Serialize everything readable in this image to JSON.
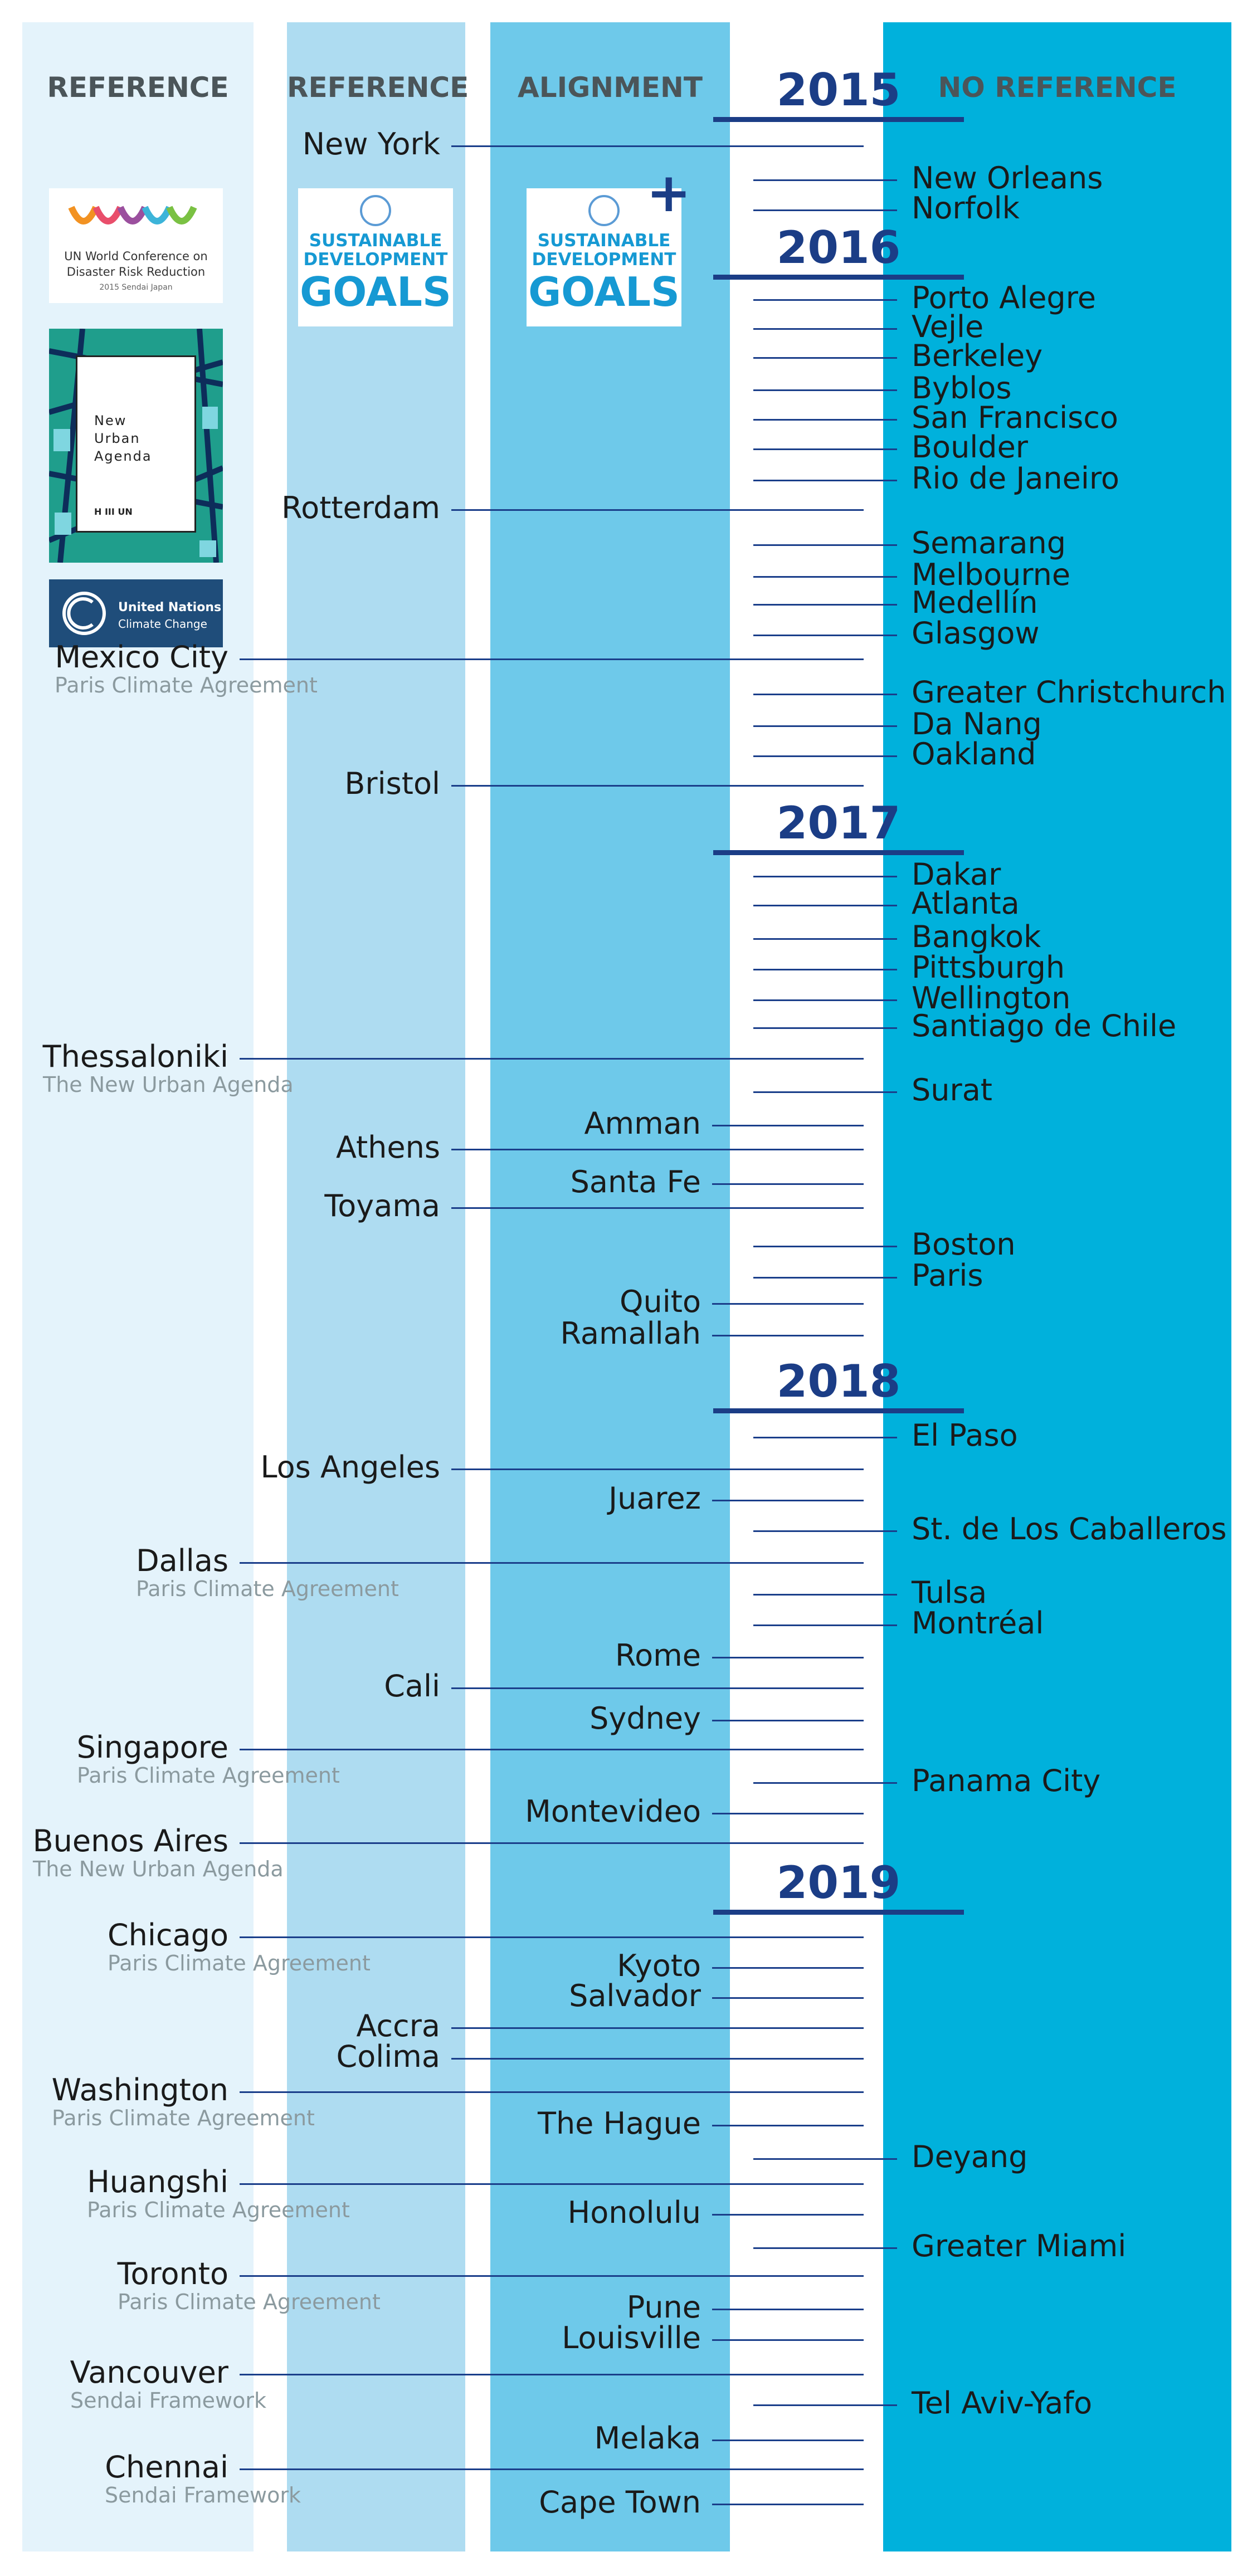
{
  "columns": [
    {
      "label": "REFERENCE"
    },
    {
      "label": "REFERENCE"
    },
    {
      "label": "ALIGNMENT"
    },
    {
      "label": "NO REFERENCE"
    }
  ],
  "years": [
    "2015",
    "2016",
    "2017",
    "2018",
    "2019"
  ],
  "logos": {
    "sendai": {
      "line1": "UN World Conference on",
      "line2": "Disaster Risk Reduction",
      "line3": "2015 Sendai Japan"
    },
    "nua": {
      "line1": "New",
      "line2": "Urban",
      "line3": "Agenda",
      "footer": "H III UN"
    },
    "unfccc": {
      "line1": "United Nations",
      "line2": "Climate Change"
    },
    "sdg": {
      "line1": "SUSTAINABLE",
      "line2": "DEVELOPMENT",
      "goals": "GOALS",
      "plus": "+"
    }
  },
  "entries": [
    {
      "name": "New York",
      "col": "ref2"
    },
    {
      "name": "New Orleans",
      "col": "noref"
    },
    {
      "name": "Norfolk",
      "col": "noref"
    },
    {
      "name": "Porto Alegre",
      "col": "noref"
    },
    {
      "name": "Vejle",
      "col": "noref"
    },
    {
      "name": "Berkeley",
      "col": "noref"
    },
    {
      "name": "Byblos",
      "col": "noref"
    },
    {
      "name": "San Francisco",
      "col": "noref"
    },
    {
      "name": "Boulder",
      "col": "noref"
    },
    {
      "name": "Rio de Janeiro",
      "col": "noref"
    },
    {
      "name": "Rotterdam",
      "col": "ref2"
    },
    {
      "name": "Semarang",
      "col": "noref"
    },
    {
      "name": "Melbourne",
      "col": "noref"
    },
    {
      "name": "Medellín",
      "col": "noref"
    },
    {
      "name": "Glasgow",
      "col": "noref"
    },
    {
      "name": "Mexico City",
      "col": "ref1",
      "sub": "Paris Climate Agreement"
    },
    {
      "name": "Greater Christchurch",
      "col": "noref"
    },
    {
      "name": "Da Nang",
      "col": "noref"
    },
    {
      "name": "Oakland",
      "col": "noref"
    },
    {
      "name": "Bristol",
      "col": "ref2"
    },
    {
      "name": "Dakar",
      "col": "noref"
    },
    {
      "name": "Atlanta",
      "col": "noref"
    },
    {
      "name": "Bangkok",
      "col": "noref"
    },
    {
      "name": "Pittsburgh",
      "col": "noref"
    },
    {
      "name": "Wellington",
      "col": "noref"
    },
    {
      "name": "Santiago de Chile",
      "col": "noref"
    },
    {
      "name": "Thessaloniki",
      "col": "ref1",
      "sub": "The New Urban Agenda"
    },
    {
      "name": "Surat",
      "col": "noref"
    },
    {
      "name": "Amman",
      "col": "align"
    },
    {
      "name": "Athens",
      "col": "ref2"
    },
    {
      "name": "Santa Fe",
      "col": "align"
    },
    {
      "name": "Toyama",
      "col": "ref2"
    },
    {
      "name": "Boston",
      "col": "noref"
    },
    {
      "name": "Paris",
      "col": "noref"
    },
    {
      "name": "Quito",
      "col": "align"
    },
    {
      "name": "Ramallah",
      "col": "align"
    },
    {
      "name": "El Paso",
      "col": "noref"
    },
    {
      "name": "Los Angeles",
      "col": "ref2"
    },
    {
      "name": "Juarez",
      "col": "align"
    },
    {
      "name": "St. de Los Caballeros",
      "col": "noref"
    },
    {
      "name": "Dallas",
      "col": "ref1",
      "sub": "Paris Climate Agreement"
    },
    {
      "name": "Tulsa",
      "col": "noref"
    },
    {
      "name": "Montréal",
      "col": "noref"
    },
    {
      "name": "Rome",
      "col": "align"
    },
    {
      "name": "Cali",
      "col": "ref2"
    },
    {
      "name": "Sydney",
      "col": "align"
    },
    {
      "name": "Singapore",
      "col": "ref1",
      "sub": "Paris Climate Agreement"
    },
    {
      "name": "Panama City",
      "col": "noref"
    },
    {
      "name": "Montevideo",
      "col": "align"
    },
    {
      "name": "Buenos Aires",
      "col": "ref1",
      "sub": "The New Urban Agenda"
    },
    {
      "name": "Chicago",
      "col": "ref1",
      "sub": "Paris Climate Agreement"
    },
    {
      "name": "Kyoto",
      "col": "align"
    },
    {
      "name": "Salvador",
      "col": "align"
    },
    {
      "name": "Accra",
      "col": "ref2"
    },
    {
      "name": "Colima",
      "col": "ref2"
    },
    {
      "name": "Washington",
      "col": "ref1",
      "sub": "Paris Climate Agreement"
    },
    {
      "name": "The Hague",
      "col": "align"
    },
    {
      "name": "Deyang",
      "col": "noref"
    },
    {
      "name": "Huangshi",
      "col": "ref1",
      "sub": "Paris Climate Agreement"
    },
    {
      "name": "Honolulu",
      "col": "align"
    },
    {
      "name": "Greater Miami",
      "col": "noref"
    },
    {
      "name": "Toronto",
      "col": "ref1",
      "sub": "Paris Climate Agreement"
    },
    {
      "name": "Pune",
      "col": "align"
    },
    {
      "name": "Louisville",
      "col": "align"
    },
    {
      "name": "Vancouver",
      "col": "ref1",
      "sub": "Sendai Framework"
    },
    {
      "name": "Tel Aviv-Yafo",
      "col": "noref"
    },
    {
      "name": "Melaka",
      "col": "align"
    },
    {
      "name": "Chennai",
      "col": "ref1",
      "sub": "Sendai Framework"
    },
    {
      "name": "Cape Town",
      "col": "align"
    }
  ]
}
